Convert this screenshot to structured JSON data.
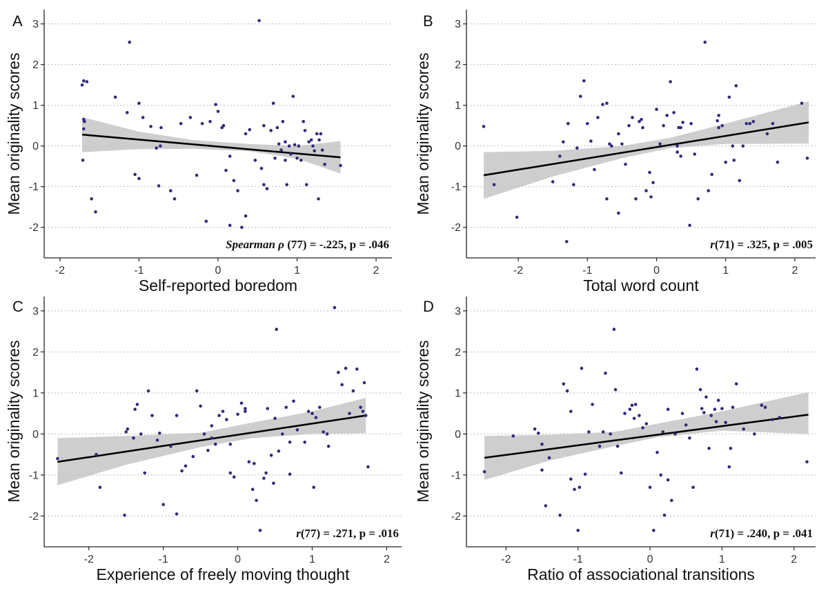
{
  "chart_data": [
    {
      "panel": "A",
      "type": "scatter",
      "xlabel": "Self-reported boredom",
      "ylabel": "Mean originality scores",
      "annotation_stat": "Spearman ρ",
      "annotation_rest": " (77) = -.225, p = .046",
      "xlim": [
        -2.2,
        2.2
      ],
      "ylim": [
        -2.75,
        3.35
      ],
      "xticks": [
        -2,
        -1,
        0,
        1,
        2
      ],
      "yticks": [
        -2,
        -1,
        0,
        1,
        2,
        3
      ],
      "grid": "horizontal dotted",
      "fit": {
        "x": [
          -1.72,
          1.55
        ],
        "y": [
          0.28,
          -0.28
        ]
      },
      "band": {
        "x": [
          -1.72,
          -1.0,
          -0.3,
          0.4,
          1.0,
          1.55
        ],
        "lower": [
          -0.15,
          -0.08,
          -0.07,
          -0.13,
          -0.31,
          -0.68
        ],
        "upper": [
          0.71,
          0.35,
          0.14,
          0.05,
          0.0,
          0.12
        ]
      },
      "points": {
        "x": [
          -1.7,
          -1.72,
          -1.66,
          -1.7,
          -1.69,
          -1.7,
          -1.71,
          -1.55,
          -1.12,
          -1.3,
          -1.15,
          -1.0,
          -1.05,
          -0.95,
          -0.85,
          -0.75,
          -0.73,
          -0.72,
          -0.6,
          -0.55,
          -0.47,
          -0.35,
          -0.27,
          -0.2,
          -0.15,
          -0.1,
          -0.03,
          0.05,
          0.07,
          0.1,
          0.15,
          0.2,
          0.25,
          0.3,
          0.35,
          0.4,
          0.47,
          0.52,
          0.55,
          0.58,
          0.62,
          0.67,
          0.7,
          0.72,
          0.75,
          0.77,
          0.8,
          0.82,
          0.85,
          0.87,
          0.9,
          0.92,
          0.95,
          0.97,
          1.0,
          1.02,
          1.05,
          1.08,
          1.1,
          1.12,
          1.15,
          1.18,
          1.2,
          1.22,
          1.25,
          1.27,
          1.3,
          1.32,
          1.35,
          1.55,
          -1.0,
          -0.78,
          0.58,
          0.85,
          1.28,
          0.15,
          0.35,
          0.0,
          -1.6
        ],
        "y": [
          1.6,
          1.5,
          1.58,
          0.65,
          0.6,
          0.42,
          -0.35,
          -1.62,
          2.55,
          1.2,
          0.82,
          1.05,
          -0.7,
          0.7,
          0.48,
          -0.98,
          0.0,
          0.45,
          -1.1,
          -1.3,
          0.55,
          0.7,
          -0.72,
          0.55,
          -1.85,
          0.6,
          1.02,
          0.45,
          0.5,
          -0.6,
          -0.25,
          -0.85,
          -1.1,
          -2.0,
          -1.72,
          0.4,
          -0.35,
          3.08,
          -0.55,
          0.5,
          -1.05,
          0.38,
          1.05,
          -0.3,
          0.45,
          0.05,
          -0.1,
          0.6,
          0.1,
          -0.95,
          0.0,
          -0.2,
          1.22,
          0.03,
          -0.3,
          0.0,
          -0.35,
          0.6,
          0.38,
          -0.95,
          0.1,
          0.15,
          0.0,
          -0.12,
          0.3,
          -1.3,
          0.3,
          -0.1,
          -0.45,
          -0.48,
          -0.8,
          -0.05,
          -0.95,
          -0.35,
          0.15,
          -1.95,
          0.3,
          0.85,
          -1.3
        ]
      }
    },
    {
      "panel": "B",
      "type": "scatter",
      "xlabel": "Total word count",
      "ylabel": "Mean originality scores",
      "annotation_stat": "r",
      "annotation_rest": "(71) = .325, p = .005",
      "xlim": [
        -2.75,
        2.3
      ],
      "ylim": [
        -2.75,
        3.35
      ],
      "xticks": [
        -2,
        -1,
        0,
        1,
        2
      ],
      "yticks": [
        -2,
        -1,
        0,
        1,
        2,
        3
      ],
      "grid": "horizontal dotted",
      "fit": {
        "x": [
          -2.5,
          2.2
        ],
        "y": [
          -0.72,
          0.58
        ]
      },
      "band": {
        "x": [
          -2.5,
          -1.5,
          -0.5,
          0.2,
          1.0,
          2.2
        ],
        "lower": [
          -1.3,
          -0.75,
          -0.3,
          -0.05,
          0.05,
          0.06
        ],
        "upper": [
          -0.15,
          -0.12,
          0.0,
          0.2,
          0.55,
          1.1
        ]
      },
      "points": {
        "x": [
          -2.5,
          -2.02,
          -2.35,
          -1.5,
          -1.4,
          -1.3,
          -1.2,
          -1.15,
          -1.1,
          -1.05,
          -1.0,
          -0.95,
          -0.9,
          -0.85,
          -0.78,
          -0.72,
          -0.68,
          -0.65,
          -0.55,
          -0.5,
          -0.45,
          -0.4,
          -0.35,
          -0.3,
          -0.25,
          -0.22,
          -0.2,
          -0.15,
          -0.1,
          -0.08,
          -0.05,
          0.0,
          0.05,
          0.1,
          0.15,
          0.2,
          0.25,
          0.3,
          0.32,
          0.35,
          0.38,
          0.5,
          0.55,
          0.6,
          0.7,
          0.75,
          0.8,
          0.88,
          0.9,
          0.95,
          1.0,
          1.05,
          1.1,
          1.15,
          1.2,
          1.25,
          1.3,
          1.35,
          1.4,
          1.6,
          1.75,
          2.1,
          2.18,
          -1.35,
          -0.72,
          0.35,
          0.9,
          1.12,
          -1.28,
          1.68,
          -0.55,
          0.48,
          0.3
        ],
        "y": [
          0.48,
          -1.75,
          -0.95,
          -0.88,
          -0.25,
          -2.35,
          -0.95,
          -0.05,
          1.22,
          1.6,
          0.55,
          0.12,
          -0.58,
          0.7,
          1.02,
          1.05,
          0.05,
          0.0,
          0.3,
          0.05,
          -0.45,
          0.5,
          0.7,
          -1.3,
          0.6,
          0.65,
          0.45,
          -1.1,
          -0.65,
          -1.25,
          -0.9,
          0.9,
          0.05,
          0.5,
          0.75,
          1.58,
          0.82,
          -0.15,
          0.45,
          0.45,
          0.58,
          0.55,
          -0.2,
          -1.3,
          2.55,
          -1.1,
          -0.7,
          0.62,
          0.75,
          0.5,
          -0.4,
          1.2,
          0.0,
          1.48,
          -0.85,
          0.0,
          0.55,
          0.55,
          0.6,
          0.3,
          -0.4,
          1.05,
          -0.3,
          0.1,
          -1.3,
          -0.25,
          0.45,
          -0.35,
          0.55,
          0.55,
          -1.65,
          -1.95,
          0.0
        ]
      }
    },
    {
      "panel": "C",
      "type": "scatter",
      "xlabel": "Experience of freely moving thought",
      "ylabel": "Mean originality scores",
      "annotation_stat": "r",
      "annotation_rest": "(77) = .271, p = .016",
      "xlim": [
        -2.6,
        2.2
      ],
      "ylim": [
        -2.75,
        3.35
      ],
      "xticks": [
        -2,
        -1,
        0,
        1,
        2
      ],
      "yticks": [
        -2,
        -1,
        0,
        1,
        2,
        3
      ],
      "grid": "horizontal dotted",
      "fit": {
        "x": [
          -2.42,
          1.72
        ],
        "y": [
          -0.68,
          0.45
        ]
      },
      "band": {
        "x": [
          -2.42,
          -1.5,
          -0.5,
          0.2,
          1.0,
          1.72
        ],
        "lower": [
          -1.25,
          -0.75,
          -0.32,
          -0.1,
          0.0,
          0.02
        ],
        "upper": [
          -0.1,
          -0.05,
          0.03,
          0.28,
          0.55,
          0.88
        ]
      },
      "points": {
        "x": [
          -2.42,
          -1.9,
          -1.85,
          -1.52,
          -1.5,
          -1.48,
          -1.4,
          -1.38,
          -1.35,
          -1.3,
          -1.25,
          -1.2,
          -1.15,
          -1.05,
          -1.0,
          -0.9,
          -0.82,
          -0.75,
          -0.7,
          -0.6,
          -0.55,
          -0.5,
          -0.45,
          -0.4,
          -0.35,
          -0.3,
          -0.25,
          -0.2,
          -0.15,
          -0.1,
          -0.05,
          0.0,
          0.05,
          0.1,
          0.15,
          0.2,
          0.25,
          0.3,
          0.35,
          0.4,
          0.45,
          0.5,
          0.52,
          0.55,
          0.6,
          0.65,
          0.7,
          0.75,
          0.8,
          0.9,
          0.95,
          1.0,
          1.05,
          1.1,
          1.15,
          1.2,
          1.3,
          1.35,
          1.4,
          1.45,
          1.5,
          1.55,
          1.6,
          1.65,
          1.7,
          1.72,
          1.75,
          1.68,
          0.7,
          0.22,
          -1.08,
          -0.82,
          0.1,
          -0.35,
          1.22,
          -0.1,
          1.02,
          0.48,
          0.38
        ],
        "y": [
          -0.6,
          -0.5,
          -1.3,
          -1.98,
          0.05,
          0.12,
          -0.1,
          0.6,
          0.72,
          0.0,
          -0.95,
          1.05,
          0.45,
          0.02,
          -1.72,
          -0.3,
          0.45,
          -0.9,
          -0.78,
          -0.55,
          1.05,
          0.68,
          0.0,
          -0.4,
          -0.1,
          -0.25,
          0.45,
          0.55,
          0.35,
          -0.95,
          -1.05,
          0.48,
          0.75,
          0.62,
          -0.68,
          -1.35,
          -1.62,
          -2.35,
          -1.08,
          0.62,
          -0.52,
          0.38,
          2.55,
          -0.42,
          0.0,
          0.65,
          -0.2,
          0.8,
          0.1,
          -0.2,
          0.55,
          0.5,
          0.4,
          0.65,
          0.05,
          0.0,
          3.08,
          1.5,
          1.2,
          1.6,
          0.5,
          1.05,
          1.58,
          0.65,
          1.25,
          0.45,
          -0.8,
          0.55,
          -0.98,
          -0.72,
          -0.15,
          -1.95,
          0.55,
          0.2,
          -0.3,
          -0.25,
          -1.3,
          -1.2,
          -0.95
        ]
      }
    },
    {
      "panel": "D",
      "type": "scatter",
      "xlabel": "Ratio of associational transitions",
      "ylabel": "Mean originality scores",
      "annotation_stat": "r",
      "annotation_rest": "(71) = .240, p = .041",
      "xlim": [
        -2.55,
        2.3
      ],
      "ylim": [
        -2.75,
        3.35
      ],
      "xticks": [
        -2,
        -1,
        0,
        1,
        2
      ],
      "yticks": [
        -2,
        -1,
        0,
        1,
        2,
        3
      ],
      "grid": "horizontal dotted",
      "fit": {
        "x": [
          -2.3,
          2.2
        ],
        "y": [
          -0.58,
          0.47
        ]
      },
      "band": {
        "x": [
          -2.3,
          -1.4,
          -0.5,
          0.1,
          1.0,
          2.2
        ],
        "lower": [
          -1.12,
          -0.65,
          -0.3,
          -0.08,
          0.08,
          0.0
        ],
        "upper": [
          -0.05,
          -0.02,
          0.05,
          0.25,
          0.55,
          1.02
        ]
      },
      "points": {
        "x": [
          -2.3,
          -1.9,
          -1.6,
          -1.55,
          -1.5,
          -1.45,
          -1.4,
          -1.25,
          -1.2,
          -1.15,
          -1.1,
          -1.05,
          -1.0,
          -0.98,
          -0.95,
          -0.9,
          -0.85,
          -0.8,
          -0.7,
          -0.62,
          -0.55,
          -0.5,
          -0.48,
          -0.45,
          -0.4,
          -0.35,
          -0.28,
          -0.25,
          -0.22,
          -0.2,
          -0.15,
          -0.1,
          -0.05,
          0.0,
          0.05,
          0.1,
          0.15,
          0.18,
          0.2,
          0.25,
          0.3,
          0.35,
          0.45,
          0.5,
          0.55,
          0.6,
          0.65,
          0.7,
          0.72,
          0.75,
          0.78,
          0.82,
          0.85,
          0.9,
          0.92,
          0.95,
          1.0,
          1.05,
          1.1,
          1.15,
          1.2,
          1.3,
          1.45,
          1.55,
          1.6,
          1.7,
          1.8,
          2.18,
          -1.1,
          -0.65,
          0.25,
          -1.5,
          1.12
        ],
        "y": [
          -0.92,
          -0.05,
          0.12,
          0.02,
          -0.88,
          -1.75,
          -0.58,
          -1.98,
          1.22,
          1.05,
          -1.1,
          -1.35,
          -2.35,
          -1.3,
          1.6,
          -0.98,
          0.05,
          0.72,
          -0.3,
          1.48,
          0.0,
          2.55,
          1.08,
          -0.3,
          -0.95,
          0.5,
          0.6,
          0.7,
          0.38,
          0.72,
          0.45,
          0.15,
          0.25,
          -1.3,
          -2.35,
          -0.45,
          -1.0,
          0.05,
          -1.98,
          -1.12,
          -1.62,
          0.0,
          0.5,
          0.22,
          -0.1,
          -1.3,
          1.58,
          1.08,
          0.62,
          0.52,
          0.9,
          -0.35,
          0.45,
          0.6,
          0.3,
          0.82,
          0.62,
          0.28,
          -0.8,
          0.65,
          1.22,
          0.12,
          0.0,
          0.7,
          0.65,
          0.35,
          0.4,
          -0.68,
          0.55,
          0.05,
          0.6,
          -0.25,
          -0.35
        ]
      }
    }
  ]
}
